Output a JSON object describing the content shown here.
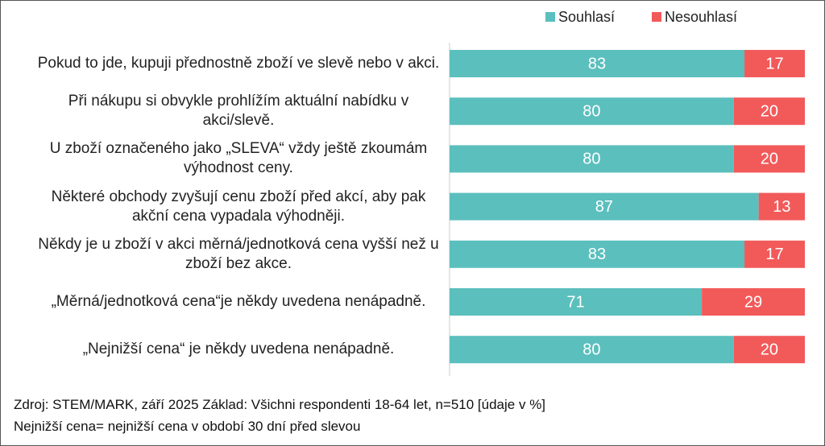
{
  "chart_data": {
    "type": "stacked-bar",
    "categories": [
      "Pokud to jde, kupuji přednostně zboží ve slevě nebo v akci.",
      "Při nákupu si obvykle prohlížím aktuální nabídku v akci/slevě.",
      "U zboží označeného jako „SLEVA“ vždy ještě zkoumám výhodnost ceny.",
      "Některé obchody zvyšují cenu zboží před akcí, aby pak akční cena vypadala výhodněji.",
      "Někdy je u zboží v akci měrná/jednotková cena vyšší než u zboží bez akce.",
      "„Měrná/jednotková cena“je někdy uvedena nenápadně.",
      "„Nejnižší cena“ je někdy uvedena nenápadně."
    ],
    "series": [
      {
        "name": "Souhlasí",
        "color": "#5bbfbd",
        "values": [
          83,
          80,
          80,
          87,
          83,
          71,
          80
        ]
      },
      {
        "name": "Nesouhlasí",
        "color": "#f25a5a",
        "values": [
          17,
          20,
          20,
          13,
          17,
          29,
          20
        ]
      }
    ],
    "xlim": [
      0,
      100
    ],
    "notes": [
      "Zdroj: STEM/MARK, září 2025 Základ: Všichni respondenti 18-64 let, n=510 [údaje v %]",
      "Nejnižší cena= nejnižší cena v období 30 dní před slevou"
    ]
  }
}
